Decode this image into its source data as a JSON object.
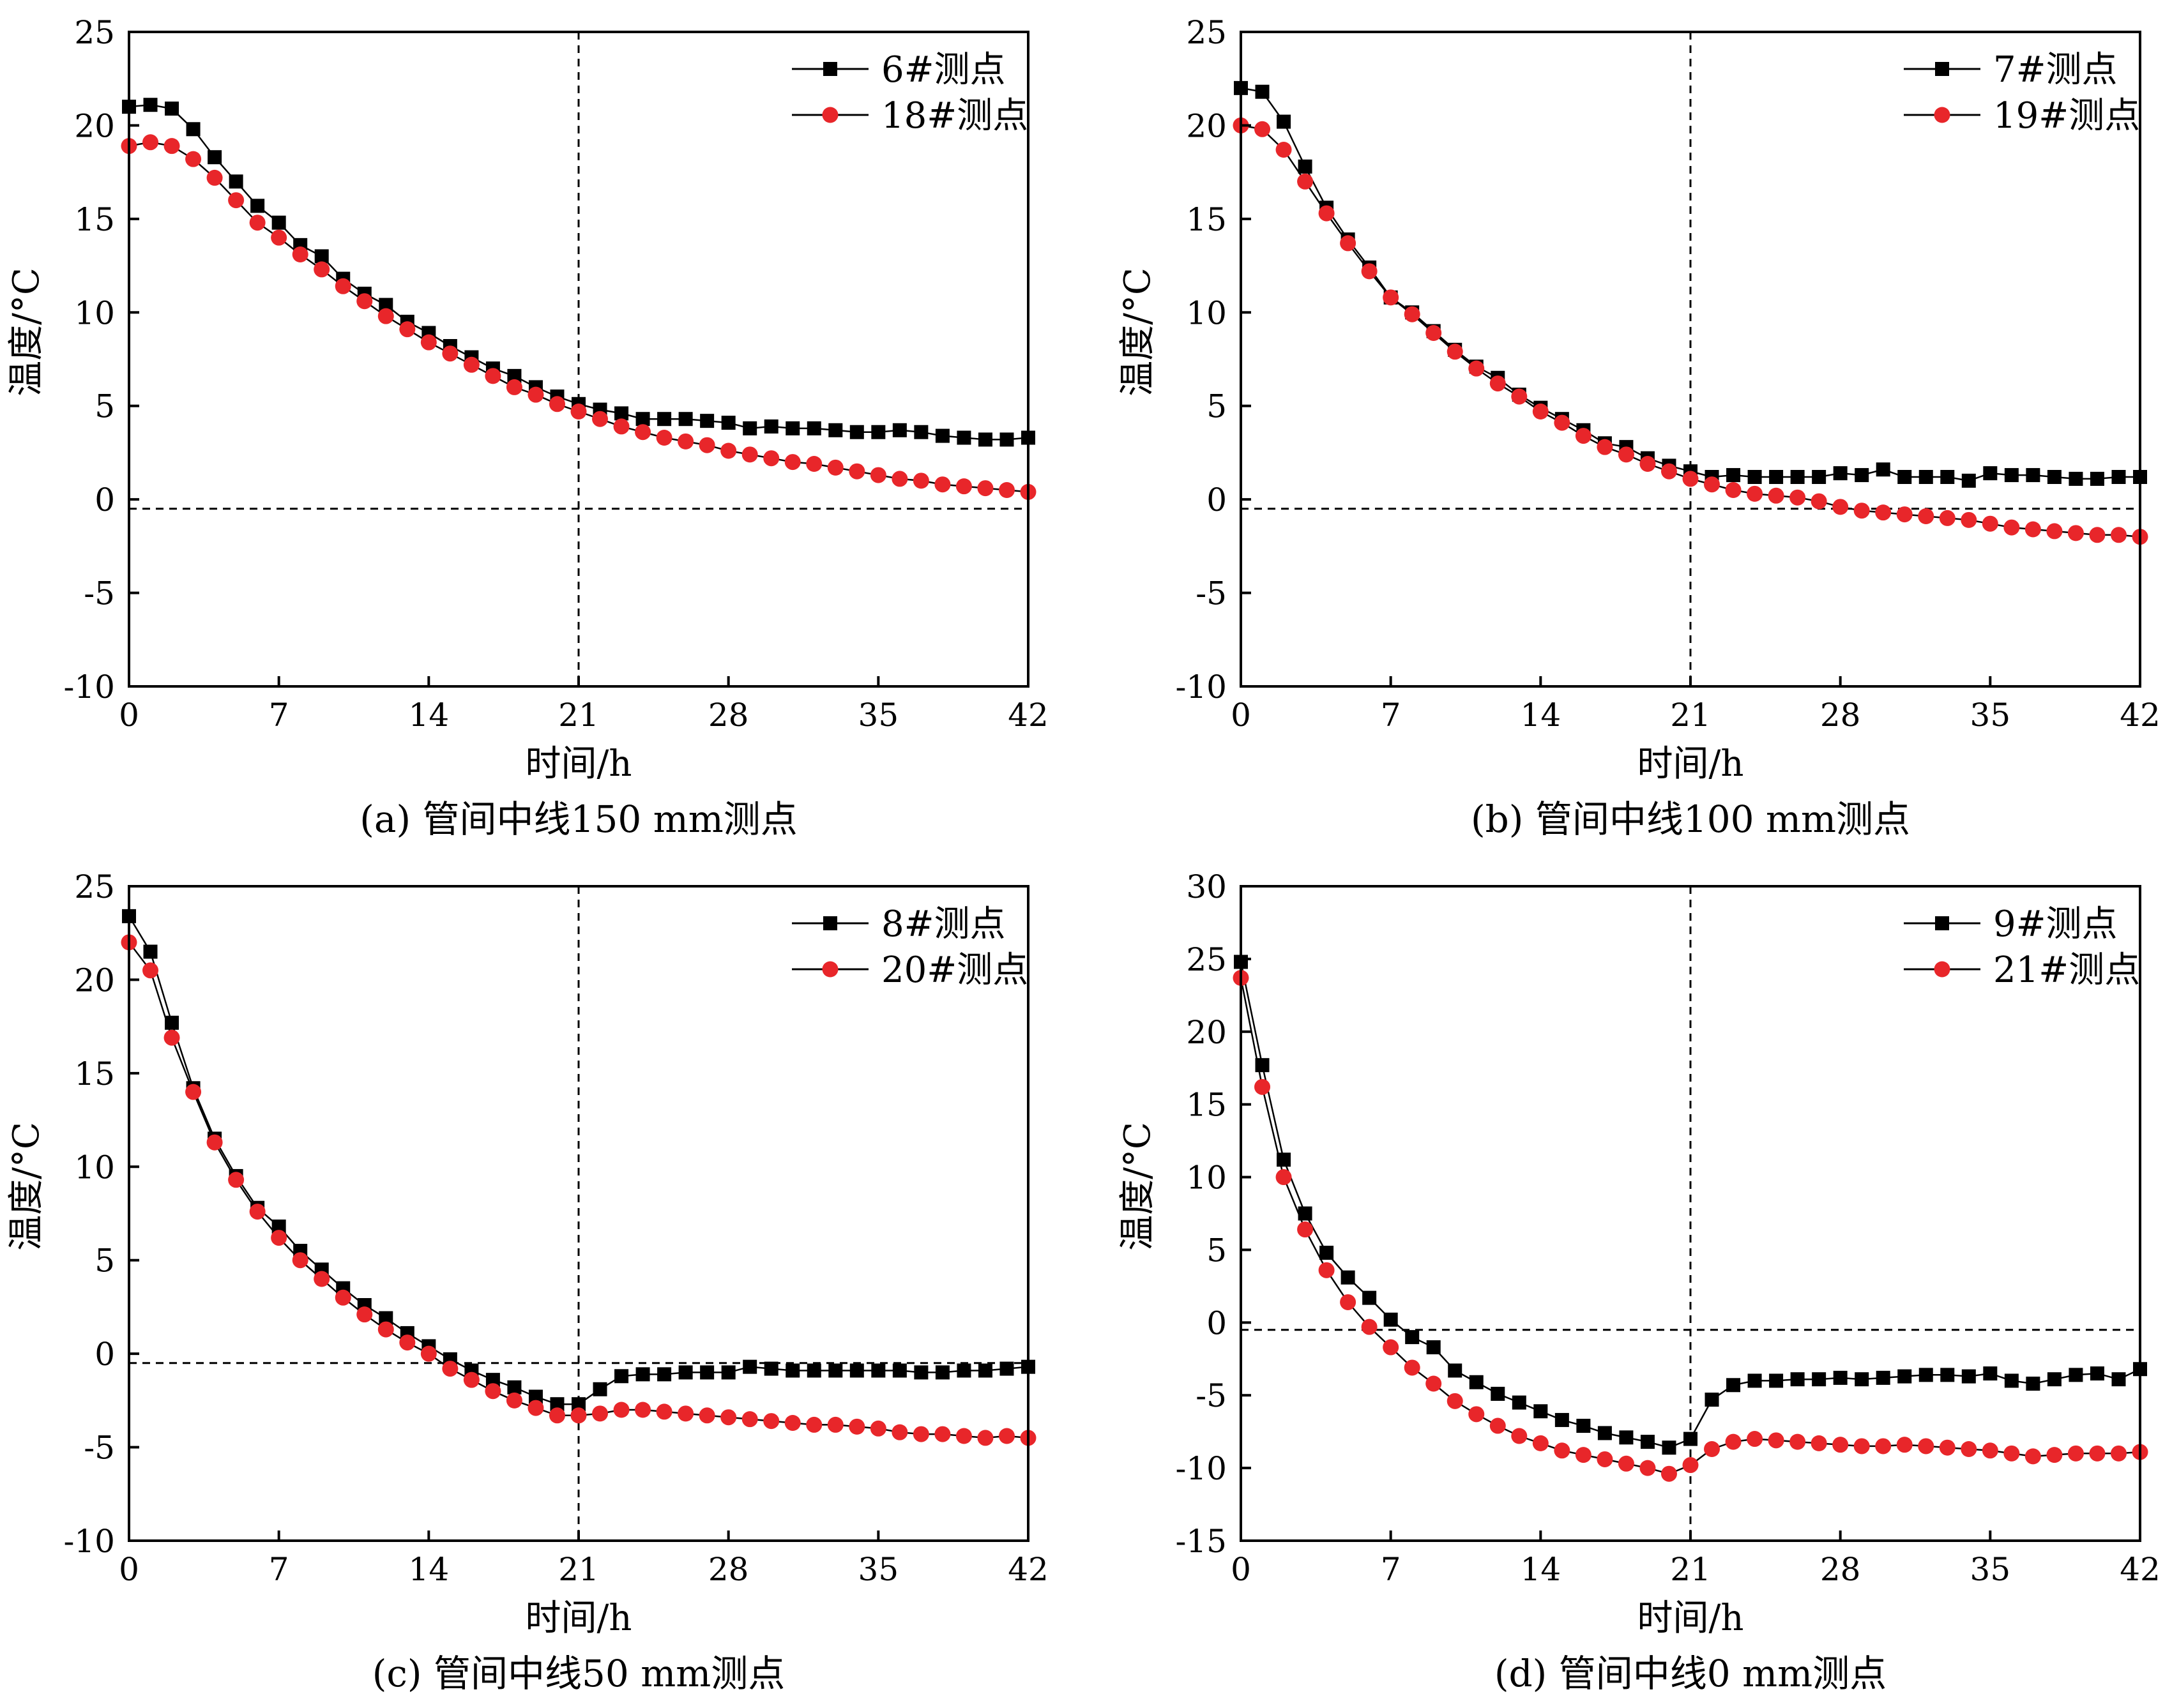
{
  "chart_data": [
    {
      "type": "line",
      "caption": "(a) 管间中线150 mm测点",
      "xlabel": "时间/h",
      "ylabel": "温度/°C",
      "xlim": [
        0,
        42
      ],
      "ylim": [
        -10,
        25
      ],
      "xticks": [
        0,
        7,
        14,
        21,
        28,
        35,
        42
      ],
      "yticks": [
        -10,
        -5,
        0,
        5,
        10,
        15,
        20,
        25
      ],
      "ref_x": 21,
      "ref_y": -0.5,
      "legend_position": "top-right",
      "series": [
        {
          "name": "6#测点",
          "marker": "square",
          "color": "#000000",
          "x": [
            0,
            1,
            2,
            3,
            4,
            5,
            6,
            7,
            8,
            9,
            10,
            11,
            12,
            13,
            14,
            15,
            16,
            17,
            18,
            19,
            20,
            21,
            22,
            23,
            24,
            25,
            26,
            27,
            28,
            29,
            30,
            31,
            32,
            33,
            34,
            35,
            36,
            37,
            38,
            39,
            40,
            41,
            42
          ],
          "y": [
            21.0,
            21.1,
            20.9,
            19.8,
            18.3,
            17.0,
            15.7,
            14.8,
            13.6,
            13.0,
            11.8,
            11.0,
            10.4,
            9.5,
            8.9,
            8.2,
            7.6,
            7.0,
            6.6,
            6.0,
            5.5,
            5.1,
            4.8,
            4.6,
            4.3,
            4.3,
            4.3,
            4.2,
            4.1,
            3.8,
            3.9,
            3.8,
            3.8,
            3.7,
            3.6,
            3.6,
            3.7,
            3.6,
            3.4,
            3.3,
            3.2,
            3.2,
            3.3
          ]
        },
        {
          "name": "18#测点",
          "marker": "circle",
          "color": "#e8262a",
          "x": [
            0,
            1,
            2,
            3,
            4,
            5,
            6,
            7,
            8,
            9,
            10,
            11,
            12,
            13,
            14,
            15,
            16,
            17,
            18,
            19,
            20,
            21,
            22,
            23,
            24,
            25,
            26,
            27,
            28,
            29,
            30,
            31,
            32,
            33,
            34,
            35,
            36,
            37,
            38,
            39,
            40,
            41,
            42
          ],
          "y": [
            18.9,
            19.1,
            18.9,
            18.2,
            17.2,
            16.0,
            14.8,
            14.0,
            13.1,
            12.3,
            11.4,
            10.6,
            9.8,
            9.1,
            8.4,
            7.8,
            7.2,
            6.6,
            6.0,
            5.6,
            5.1,
            4.7,
            4.3,
            3.9,
            3.6,
            3.3,
            3.1,
            2.9,
            2.6,
            2.4,
            2.2,
            2.0,
            1.9,
            1.7,
            1.5,
            1.3,
            1.1,
            1.0,
            0.8,
            0.7,
            0.6,
            0.5,
            0.4
          ]
        }
      ]
    },
    {
      "type": "line",
      "caption": "(b) 管间中线100 mm测点",
      "xlabel": "时间/h",
      "ylabel": "温度/°C",
      "xlim": [
        0,
        42
      ],
      "ylim": [
        -10,
        25
      ],
      "xticks": [
        0,
        7,
        14,
        21,
        28,
        35,
        42
      ],
      "yticks": [
        -10,
        -5,
        0,
        5,
        10,
        15,
        20,
        25
      ],
      "ref_x": 21,
      "ref_y": -0.5,
      "legend_position": "top-right",
      "series": [
        {
          "name": "7#测点",
          "marker": "square",
          "color": "#000000",
          "x": [
            0,
            1,
            2,
            3,
            4,
            5,
            6,
            7,
            8,
            9,
            10,
            11,
            12,
            13,
            14,
            15,
            16,
            17,
            18,
            19,
            20,
            21,
            22,
            23,
            24,
            25,
            26,
            27,
            28,
            29,
            30,
            31,
            32,
            33,
            34,
            35,
            36,
            37,
            38,
            39,
            40,
            41,
            42
          ],
          "y": [
            22.0,
            21.8,
            20.2,
            17.8,
            15.6,
            13.9,
            12.4,
            10.8,
            10.0,
            9.0,
            8.0,
            7.1,
            6.5,
            5.6,
            4.9,
            4.3,
            3.7,
            3.0,
            2.8,
            2.2,
            1.8,
            1.5,
            1.2,
            1.3,
            1.2,
            1.2,
            1.2,
            1.2,
            1.4,
            1.3,
            1.6,
            1.2,
            1.2,
            1.2,
            1.0,
            1.4,
            1.3,
            1.3,
            1.2,
            1.1,
            1.1,
            1.2,
            1.2
          ]
        },
        {
          "name": "19#测点",
          "marker": "circle",
          "color": "#e8262a",
          "x": [
            0,
            1,
            2,
            3,
            4,
            5,
            6,
            7,
            8,
            9,
            10,
            11,
            12,
            13,
            14,
            15,
            16,
            17,
            18,
            19,
            20,
            21,
            22,
            23,
            24,
            25,
            26,
            27,
            28,
            29,
            30,
            31,
            32,
            33,
            34,
            35,
            36,
            37,
            38,
            39,
            40,
            41,
            42
          ],
          "y": [
            20.0,
            19.8,
            18.7,
            17.0,
            15.3,
            13.7,
            12.2,
            10.8,
            9.9,
            8.9,
            7.9,
            7.0,
            6.2,
            5.5,
            4.7,
            4.1,
            3.4,
            2.8,
            2.4,
            1.9,
            1.5,
            1.1,
            0.8,
            0.5,
            0.3,
            0.2,
            0.1,
            -0.1,
            -0.4,
            -0.6,
            -0.7,
            -0.8,
            -0.9,
            -1.0,
            -1.1,
            -1.3,
            -1.5,
            -1.6,
            -1.7,
            -1.8,
            -1.9,
            -1.9,
            -2.0
          ]
        }
      ]
    },
    {
      "type": "line",
      "caption": "(c) 管间中线50 mm测点",
      "xlabel": "时间/h",
      "ylabel": "温度/°C",
      "xlim": [
        0,
        42
      ],
      "ylim": [
        -10,
        25
      ],
      "xticks": [
        0,
        7,
        14,
        21,
        28,
        35,
        42
      ],
      "yticks": [
        -10,
        -5,
        0,
        5,
        10,
        15,
        20,
        25
      ],
      "ref_x": 21,
      "ref_y": -0.5,
      "legend_position": "top-right",
      "series": [
        {
          "name": "8#测点",
          "marker": "square",
          "color": "#000000",
          "x": [
            0,
            1,
            2,
            3,
            4,
            5,
            6,
            7,
            8,
            9,
            10,
            11,
            12,
            13,
            14,
            15,
            16,
            17,
            18,
            19,
            20,
            21,
            22,
            23,
            24,
            25,
            26,
            27,
            28,
            29,
            30,
            31,
            32,
            33,
            34,
            35,
            36,
            37,
            38,
            39,
            40,
            41,
            42
          ],
          "y": [
            23.4,
            21.5,
            17.7,
            14.2,
            11.5,
            9.5,
            7.8,
            6.8,
            5.5,
            4.5,
            3.5,
            2.6,
            1.9,
            1.1,
            0.4,
            -0.3,
            -0.9,
            -1.4,
            -1.8,
            -2.3,
            -2.7,
            -2.7,
            -1.9,
            -1.2,
            -1.1,
            -1.1,
            -1.0,
            -1.0,
            -1.0,
            -0.7,
            -0.8,
            -0.9,
            -0.9,
            -0.9,
            -0.9,
            -0.9,
            -0.9,
            -1.0,
            -1.0,
            -0.9,
            -0.9,
            -0.8,
            -0.7
          ]
        },
        {
          "name": "20#测点",
          "marker": "circle",
          "color": "#e8262a",
          "x": [
            0,
            1,
            2,
            3,
            4,
            5,
            6,
            7,
            8,
            9,
            10,
            11,
            12,
            13,
            14,
            15,
            16,
            17,
            18,
            19,
            20,
            21,
            22,
            23,
            24,
            25,
            26,
            27,
            28,
            29,
            30,
            31,
            32,
            33,
            34,
            35,
            36,
            37,
            38,
            39,
            40,
            41,
            42
          ],
          "y": [
            22.0,
            20.5,
            16.9,
            14.0,
            11.3,
            9.3,
            7.6,
            6.2,
            5.0,
            4.0,
            3.0,
            2.1,
            1.3,
            0.6,
            0.0,
            -0.8,
            -1.4,
            -2.0,
            -2.5,
            -2.9,
            -3.3,
            -3.3,
            -3.2,
            -3.0,
            -3.0,
            -3.1,
            -3.2,
            -3.3,
            -3.4,
            -3.5,
            -3.6,
            -3.7,
            -3.8,
            -3.8,
            -3.9,
            -4.0,
            -4.2,
            -4.3,
            -4.3,
            -4.4,
            -4.5,
            -4.4,
            -4.5
          ]
        }
      ]
    },
    {
      "type": "line",
      "caption": "(d) 管间中线0 mm测点",
      "xlabel": "时间/h",
      "ylabel": "温度/°C",
      "xlim": [
        0,
        42
      ],
      "ylim": [
        -15,
        30
      ],
      "xticks": [
        0,
        7,
        14,
        21,
        28,
        35,
        42
      ],
      "yticks": [
        -15,
        -10,
        -5,
        0,
        5,
        10,
        15,
        20,
        25,
        30
      ],
      "ref_x": 21,
      "ref_y": -0.5,
      "legend_position": "top-right",
      "series": [
        {
          "name": "9#测点",
          "marker": "square",
          "color": "#000000",
          "x": [
            0,
            1,
            2,
            3,
            4,
            5,
            6,
            7,
            8,
            9,
            10,
            11,
            12,
            13,
            14,
            15,
            16,
            17,
            18,
            19,
            20,
            21,
            22,
            23,
            24,
            25,
            26,
            27,
            28,
            29,
            30,
            31,
            32,
            33,
            34,
            35,
            36,
            37,
            38,
            39,
            40,
            41,
            42
          ],
          "y": [
            24.8,
            17.7,
            11.2,
            7.5,
            4.8,
            3.1,
            1.7,
            0.2,
            -1.0,
            -1.7,
            -3.3,
            -4.1,
            -4.9,
            -5.5,
            -6.1,
            -6.7,
            -7.1,
            -7.6,
            -7.9,
            -8.2,
            -8.6,
            -8.0,
            -5.3,
            -4.3,
            -4.0,
            -4.0,
            -3.9,
            -3.9,
            -3.8,
            -3.9,
            -3.8,
            -3.7,
            -3.6,
            -3.6,
            -3.7,
            -3.5,
            -4.0,
            -4.2,
            -3.9,
            -3.6,
            -3.5,
            -3.9,
            -3.2
          ]
        },
        {
          "name": "21#测点",
          "marker": "circle",
          "color": "#e8262a",
          "x": [
            0,
            1,
            2,
            3,
            4,
            5,
            6,
            7,
            8,
            9,
            10,
            11,
            12,
            13,
            14,
            15,
            16,
            17,
            18,
            19,
            20,
            21,
            22,
            23,
            24,
            25,
            26,
            27,
            28,
            29,
            30,
            31,
            32,
            33,
            34,
            35,
            36,
            37,
            38,
            39,
            40,
            41,
            42
          ],
          "y": [
            23.7,
            16.2,
            10.0,
            6.4,
            3.6,
            1.4,
            -0.3,
            -1.7,
            -3.1,
            -4.2,
            -5.4,
            -6.3,
            -7.1,
            -7.8,
            -8.3,
            -8.8,
            -9.1,
            -9.4,
            -9.7,
            -10.0,
            -10.4,
            -9.8,
            -8.7,
            -8.2,
            -8.0,
            -8.1,
            -8.2,
            -8.3,
            -8.4,
            -8.5,
            -8.5,
            -8.4,
            -8.5,
            -8.6,
            -8.7,
            -8.8,
            -9.0,
            -9.2,
            -9.1,
            -9.0,
            -9.0,
            -9.0,
            -8.9
          ]
        }
      ]
    }
  ]
}
